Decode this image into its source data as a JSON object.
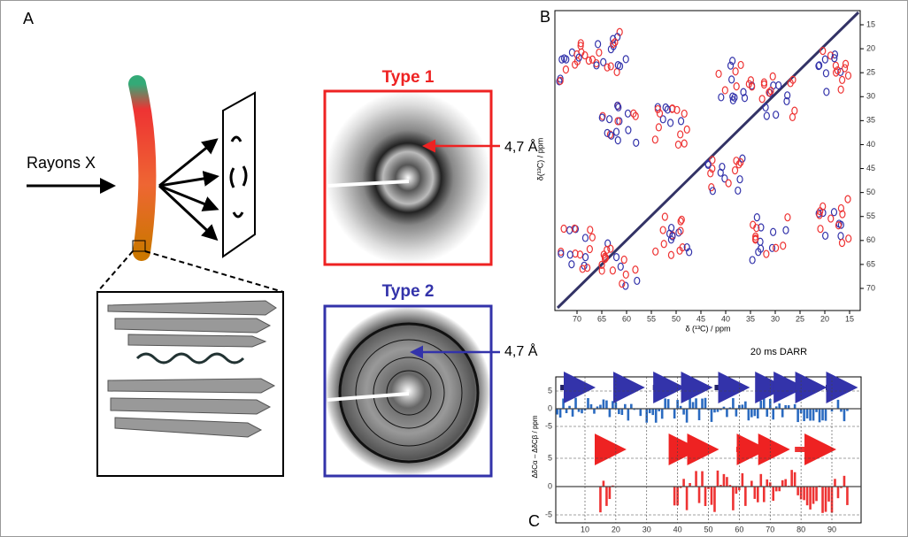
{
  "panels": {
    "a": "A",
    "b": "B",
    "c": "C"
  },
  "xray": "Rayons X",
  "type1": {
    "title": "Type 1",
    "spacing": "4,7 Å"
  },
  "type2": {
    "title": "Type 2",
    "spacing": "4,7 Å"
  },
  "nmr": {
    "xlabel": "δ (¹³C) / ppm",
    "ylabel": "δ(¹³C) / ppm",
    "xticks": [
      70,
      65,
      60,
      55,
      50,
      45,
      40,
      35,
      30,
      25,
      20,
      15
    ],
    "yticks": [
      15,
      20,
      25,
      30,
      35,
      40,
      45,
      50,
      55,
      60,
      65,
      70
    ],
    "caption": "20 ms DARR"
  },
  "shifts": {
    "ylabel": "ΔδCα – ΔδCβ / ppm",
    "xticks": [
      10,
      20,
      30,
      40,
      50,
      60,
      70,
      80,
      90
    ],
    "upper_yticks": [
      5,
      0,
      -5
    ],
    "lower_yticks": [
      5,
      0,
      -5
    ]
  }
}
